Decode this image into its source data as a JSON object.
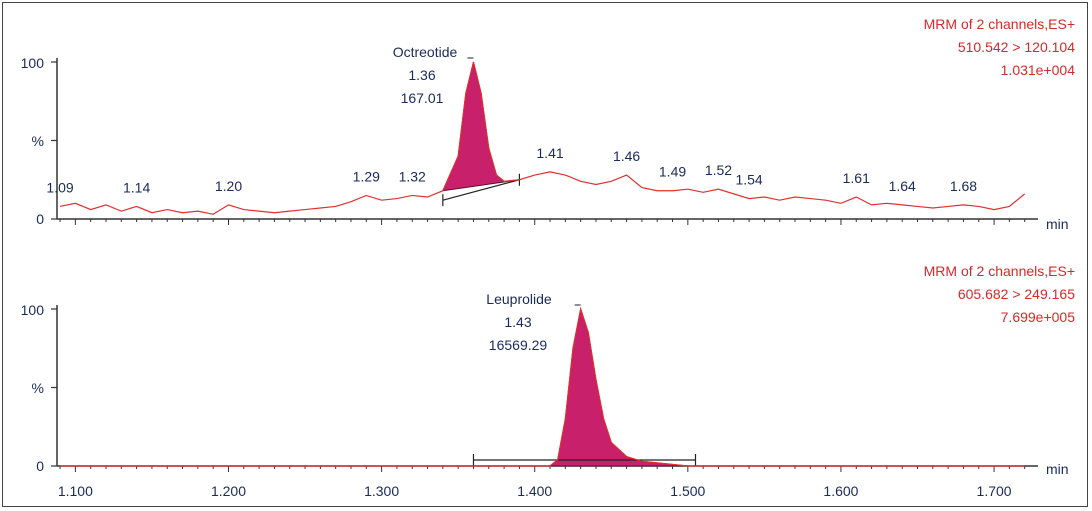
{
  "colors": {
    "trace": "#e03030",
    "peak_fill": "#c8206a",
    "axis": "#333333",
    "text": "#1a2a5a",
    "header": "#d42a2a"
  },
  "chart_data": [
    {
      "type": "line",
      "x_unit": "min",
      "y_axis_label": "%",
      "y_ticks": [
        "100",
        "%",
        "0"
      ],
      "xlim": [
        1.088,
        1.73
      ],
      "ylim": [
        0,
        100
      ],
      "header": [
        "MRM of 2 channels,ES+",
        "510.542 > 120.104",
        "1.031e+004"
      ],
      "series": [
        {
          "x": [
            1.09,
            1.1,
            1.11,
            1.12,
            1.13,
            1.14,
            1.15,
            1.16,
            1.17,
            1.18,
            1.19,
            1.2,
            1.21,
            1.22,
            1.23,
            1.24,
            1.25,
            1.26,
            1.27,
            1.28,
            1.29,
            1.3,
            1.31,
            1.32,
            1.33,
            1.34,
            1.35,
            1.355,
            1.36,
            1.365,
            1.37,
            1.375,
            1.38,
            1.39,
            1.4,
            1.41,
            1.42,
            1.43,
            1.44,
            1.45,
            1.46,
            1.47,
            1.48,
            1.49,
            1.5,
            1.51,
            1.52,
            1.53,
            1.54,
            1.55,
            1.56,
            1.57,
            1.58,
            1.59,
            1.6,
            1.61,
            1.62,
            1.63,
            1.64,
            1.65,
            1.66,
            1.67,
            1.68,
            1.69,
            1.7,
            1.71,
            1.72
          ],
          "y": [
            8,
            10,
            6,
            9,
            5,
            8,
            4,
            6,
            4,
            5,
            3,
            9,
            6,
            5,
            4,
            5,
            6,
            7,
            8,
            11,
            15,
            12,
            13,
            15,
            14,
            18,
            40,
            80,
            100,
            80,
            45,
            28,
            24,
            25,
            28,
            30,
            28,
            24,
            22,
            24,
            28,
            20,
            18,
            18,
            19,
            17,
            19,
            16,
            13,
            14,
            12,
            14,
            13,
            12,
            10,
            14,
            9,
            10,
            9,
            8,
            7,
            8,
            9,
            8,
            6,
            8,
            16
          ]
        }
      ],
      "peak": {
        "name": "Octreotide",
        "rt": "1.36",
        "area": "167.01",
        "start": 1.34,
        "apex": 1.36,
        "end": 1.39
      },
      "peak_labels": [
        "1.09",
        "1.14",
        "1.20",
        "1.29",
        "1.32",
        "1.41",
        "1.46",
        "1.49",
        "1.52",
        "1.54",
        "1.61",
        "1.64",
        "1.68"
      ]
    },
    {
      "type": "line",
      "x_unit": "min",
      "y_axis_label": "%",
      "y_ticks": [
        "100",
        "%",
        "0"
      ],
      "xlim": [
        1.088,
        1.73
      ],
      "ylim": [
        0,
        100
      ],
      "x_ticks": [
        "1.100",
        "1.200",
        "1.300",
        "1.400",
        "1.500",
        "1.600",
        "1.700"
      ],
      "header": [
        "MRM of 2 channels,ES+",
        "605.682 > 249.165",
        "7.699e+005"
      ],
      "series": [
        {
          "x": [
            1.09,
            1.4,
            1.41,
            1.415,
            1.42,
            1.425,
            1.43,
            1.435,
            1.44,
            1.445,
            1.45,
            1.46,
            1.47,
            1.48,
            1.49,
            1.5,
            1.72
          ],
          "y": [
            0,
            0,
            0,
            4,
            30,
            75,
            100,
            85,
            55,
            30,
            15,
            6,
            3,
            2,
            1,
            0,
            0
          ]
        }
      ],
      "peak": {
        "name": "Leuprolide",
        "rt": "1.43",
        "area": "16569.29",
        "start": 1.36,
        "apex": 1.43,
        "end": 1.505
      }
    }
  ]
}
